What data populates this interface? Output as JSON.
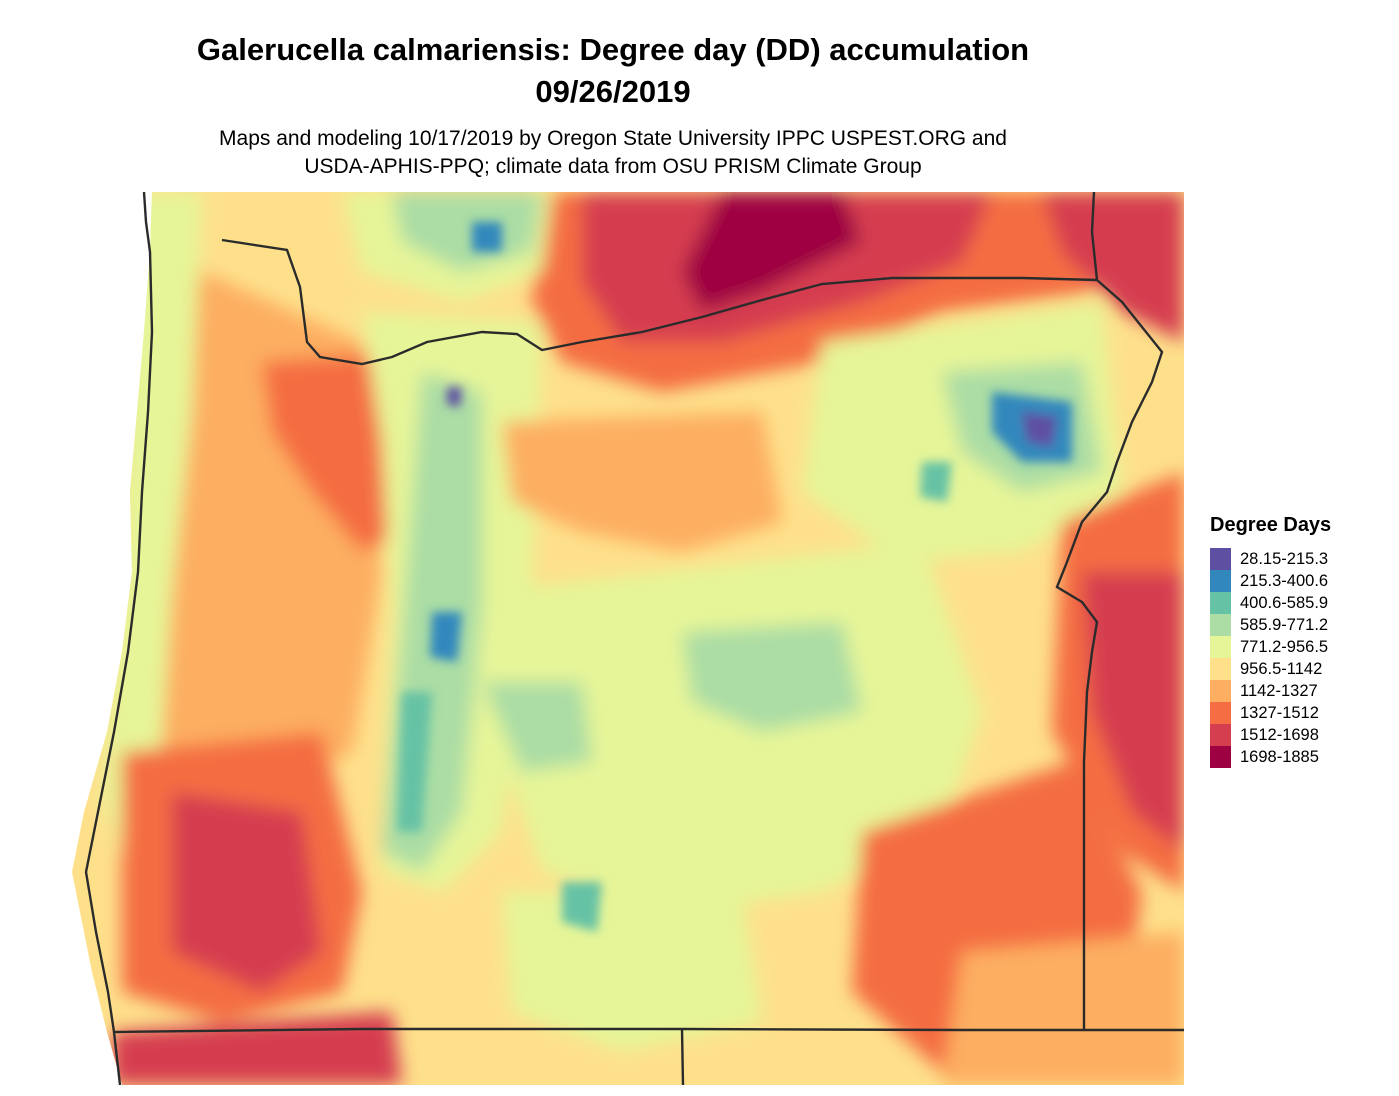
{
  "title_line1": "Galerucella calmariensis: Degree day (DD) accumulation",
  "title_line2": "09/26/2019",
  "subtitle_line1": "Maps and modeling 10/17/2019 by Oregon State University IPPC USPEST.ORG and",
  "subtitle_line2": "USDA-APHIS-PPQ; climate data from OSU PRISM Climate Group",
  "legend": {
    "title": "Degree Days",
    "items": [
      {
        "label": "28.15-215.3",
        "color": "#5e4fa2"
      },
      {
        "label": "215.3-400.6",
        "color": "#3288bd"
      },
      {
        "label": "400.6-585.9",
        "color": "#66c2a5"
      },
      {
        "label": "585.9-771.2",
        "color": "#abdda4"
      },
      {
        "label": "771.2-956.5",
        "color": "#e6f598"
      },
      {
        "label": "956.5-1142",
        "color": "#fee08b"
      },
      {
        "label": "1142-1327",
        "color": "#fdae61"
      },
      {
        "label": "1327-1512",
        "color": "#f46d43"
      },
      {
        "label": "1512-1698",
        "color": "#d53e4f"
      },
      {
        "label": "1698-1885",
        "color": "#9e0142"
      }
    ]
  }
}
